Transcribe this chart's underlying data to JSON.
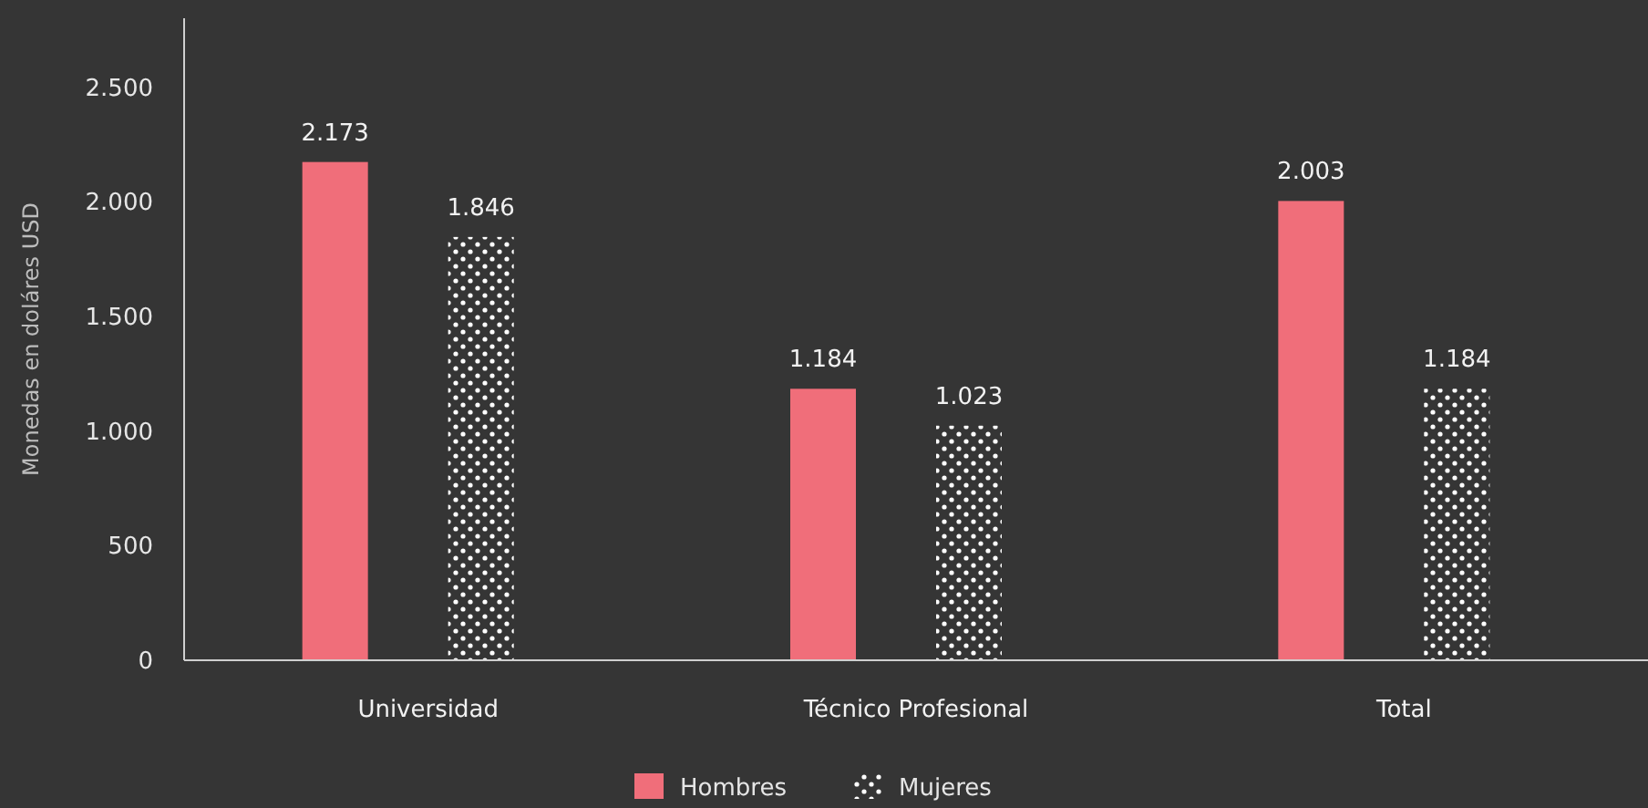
{
  "chart_data": {
    "type": "bar",
    "ylabel": "Monedas en doláres USD",
    "categories": [
      "Universidad",
      "Técnico Profesional",
      "Total"
    ],
    "series": [
      {
        "name": "Hombres",
        "color": "#f06e7a",
        "values": [
          2173,
          1184,
          2003
        ],
        "value_labels": [
          "2.173",
          "1.184",
          "2.003"
        ]
      },
      {
        "name": "Mujeres",
        "color": "#ffffff",
        "values": [
          1846,
          1023,
          1184
        ],
        "value_labels": [
          "1.846",
          "1.023",
          "1.184"
        ]
      }
    ],
    "ylim": [
      0,
      2800
    ],
    "yticks": [
      0,
      500,
      {
        "value": 1000,
        "label": "1.000"
      },
      {
        "value": 1500,
        "label": "1.500"
      },
      {
        "value": 2000,
        "label": "2.000"
      },
      {
        "value": 2500,
        "label": "2.500"
      }
    ],
    "grid": false,
    "legend": "bottom"
  }
}
